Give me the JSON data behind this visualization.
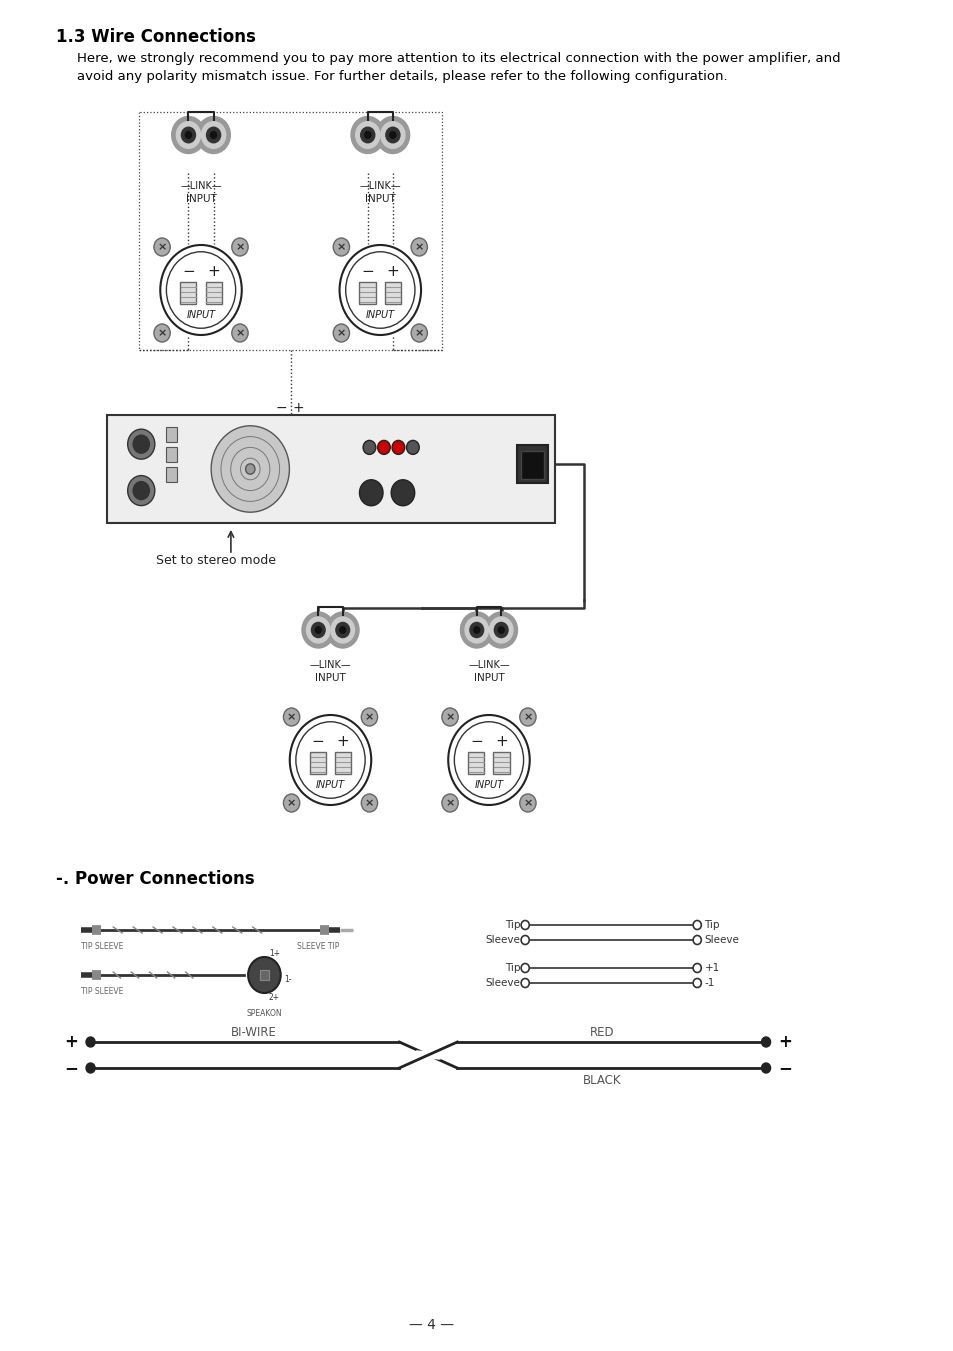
{
  "title": "1.3 Wire Connections",
  "intro_line1": "Here, we strongly recommend you to pay more attention to its electrical connection with the power amplifier, and",
  "intro_line2": "avoid any polarity mismatch issue. For further details, please refer to the following configuration.",
  "section2_title": "-. Power Connections",
  "stereo_label": "Set to stereo mode",
  "page_number": "4",
  "bg_color": "#ffffff",
  "text_color": "#000000",
  "gray_color": "#888888",
  "light_gray": "#cccccc",
  "dark_gray": "#555555"
}
